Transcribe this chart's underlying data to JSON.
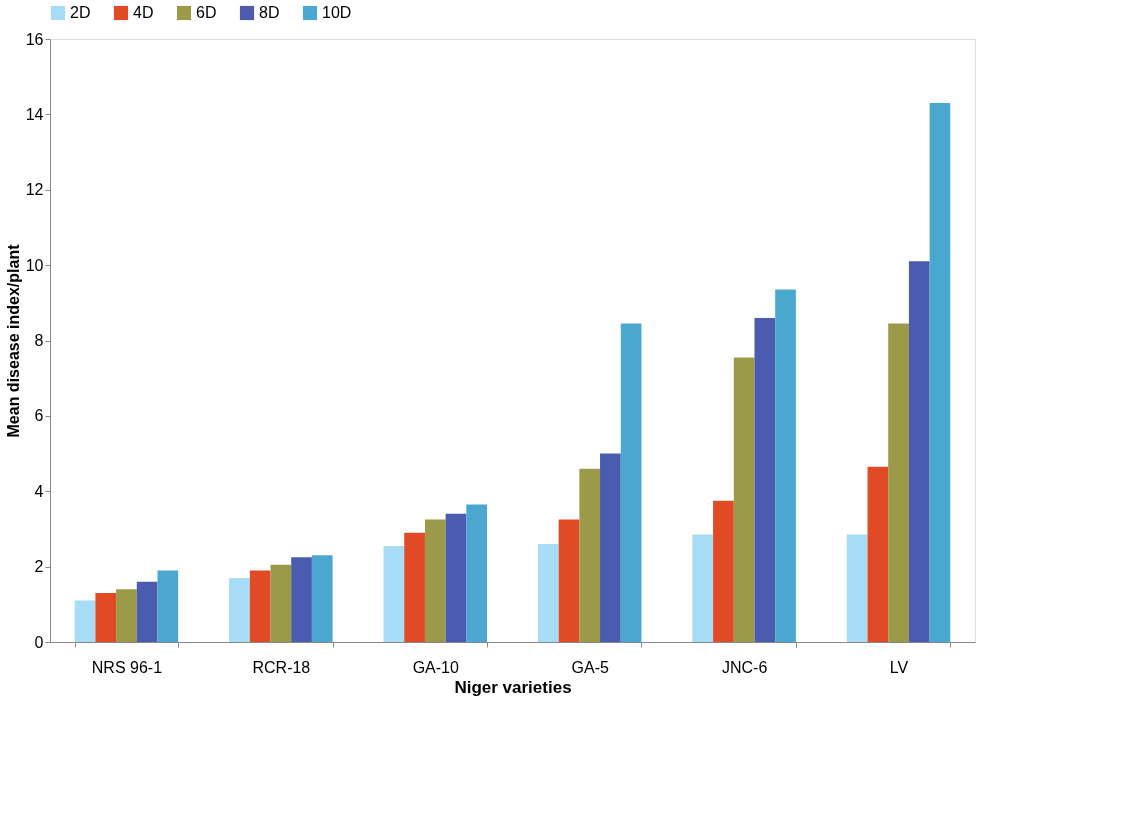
{
  "chart_data": {
    "type": "bar",
    "xlabel": "Niger varieties",
    "ylabel": "Mean disease index/plant",
    "categories": [
      "NRS 96-1",
      "RCR-18",
      "GA-10",
      "GA-5",
      "JNC-6",
      "LV"
    ],
    "series": [
      {
        "name": "2D",
        "color": "#a6dcf5",
        "values": [
          1.1,
          1.7,
          2.55,
          2.6,
          2.85,
          2.85
        ]
      },
      {
        "name": "4D",
        "color": "#e04a25",
        "values": [
          1.3,
          1.9,
          2.9,
          3.25,
          3.75,
          4.65
        ]
      },
      {
        "name": "6D",
        "color": "#9a9a48",
        "values": [
          1.4,
          2.05,
          3.25,
          4.6,
          7.55,
          8.45
        ]
      },
      {
        "name": "8D",
        "color": "#4a5bb0",
        "values": [
          1.6,
          2.25,
          3.4,
          5.0,
          8.6,
          10.1
        ]
      },
      {
        "name": "10D",
        "color": "#4aa8d0",
        "values": [
          1.9,
          2.3,
          3.65,
          8.45,
          9.35,
          14.3
        ]
      }
    ],
    "ylim": [
      0,
      16
    ],
    "yticks": [
      0,
      2,
      4,
      6,
      8,
      10,
      12,
      14,
      16
    ],
    "grid": false,
    "legend": "top"
  }
}
